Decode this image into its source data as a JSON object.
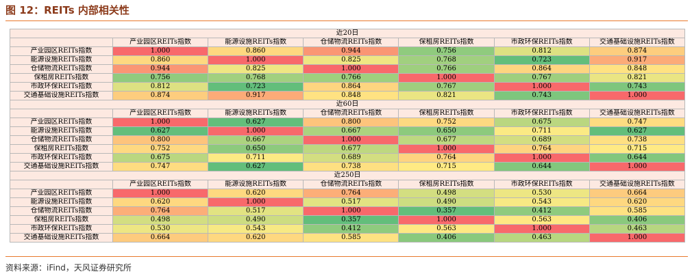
{
  "title": "图 12：REITs 内部相关性",
  "blocks": [
    {
      "period": "近20日",
      "columns": [
        "产业园区REITs指数",
        "能源设施REITs指数",
        "仓储物流REITs指数",
        "保租房REITs指数",
        "市政环保REITs指数",
        "交通基础设施REITs指数"
      ],
      "rows": [
        {
          "label": "产业园区REITs指数",
          "cells": [
            "1.000",
            "0.860",
            "0.944",
            "0.756",
            "0.812",
            "0.874"
          ]
        },
        {
          "label": "能源设施REITs指数",
          "cells": [
            "0.860",
            "1.000",
            "0.825",
            "0.768",
            "0.723",
            "0.917"
          ]
        },
        {
          "label": "仓储物流REITs指数",
          "cells": [
            "0.944",
            "0.825",
            "1.000",
            "0.766",
            "0.864",
            "0.848"
          ]
        },
        {
          "label": "保租房REITs指数",
          "cells": [
            "0.756",
            "0.768",
            "0.766",
            "1.000",
            "0.767",
            "0.821"
          ]
        },
        {
          "label": "市政环保REITs指数",
          "cells": [
            "0.812",
            "0.723",
            "0.864",
            "0.767",
            "1.000",
            "0.743"
          ]
        },
        {
          "label": "交通基础设施REITs指数",
          "cells": [
            "0.874",
            "0.917",
            "0.848",
            "0.821",
            "0.743",
            "1.000"
          ]
        }
      ]
    },
    {
      "period": "近60日",
      "columns": [
        "产业园区REITs指数",
        "能源设施REITs指数",
        "仓储物流REITs指数",
        "保租房REITs指数",
        "市政环保REITs指数",
        "交通基础设施REITs指数"
      ],
      "rows": [
        {
          "label": "产业园区REITs指数",
          "cells": [
            "1.000",
            "0.627",
            "0.800",
            "0.752",
            "0.675",
            "0.747"
          ]
        },
        {
          "label": "能源设施REITs指数",
          "cells": [
            "0.627",
            "1.000",
            "0.667",
            "0.650",
            "0.711",
            "0.627"
          ]
        },
        {
          "label": "仓储物流REITs指数",
          "cells": [
            "0.800",
            "0.667",
            "1.000",
            "0.677",
            "0.689",
            "0.738"
          ]
        },
        {
          "label": "保租房REITs指数",
          "cells": [
            "0.752",
            "0.650",
            "0.677",
            "1.000",
            "0.764",
            "0.715"
          ]
        },
        {
          "label": "市政环保REITs指数",
          "cells": [
            "0.675",
            "0.711",
            "0.689",
            "0.764",
            "1.000",
            "0.644"
          ]
        },
        {
          "label": "交通基础设施REITs指数",
          "cells": [
            "0.747",
            "0.627",
            "0.738",
            "0.715",
            "0.644",
            "1.000"
          ]
        }
      ]
    },
    {
      "period": "近250日",
      "columns": [
        "产业园区REITs指数",
        "能源设施REITs指数",
        "仓储物流REITs指数",
        "保租房REITs指数",
        "市政环保REITs指数",
        "交通基础设施REITs指数"
      ],
      "rows": [
        {
          "label": "产业园区REITs指数",
          "cells": [
            "1.000",
            "0.620",
            "0.764",
            "0.498",
            "0.530",
            "0.664"
          ]
        },
        {
          "label": "能源设施REITs指数",
          "cells": [
            "0.620",
            "1.000",
            "0.517",
            "0.490",
            "0.543",
            "0.620"
          ]
        },
        {
          "label": "仓储物流REITs指数",
          "cells": [
            "0.764",
            "0.517",
            "1.000",
            "0.357",
            "0.412",
            "0.585"
          ]
        },
        {
          "label": "保租房REITs指数",
          "cells": [
            "0.498",
            "0.490",
            "0.357",
            "1.000",
            "0.563",
            "0.406"
          ]
        },
        {
          "label": "市政环保REITs指数",
          "cells": [
            "0.530",
            "0.543",
            "0.412",
            "0.563",
            "1.000",
            "0.463"
          ]
        },
        {
          "label": "交通基础设施REITs指数",
          "cells": [
            "0.664",
            "0.620",
            "0.585",
            "0.406",
            "0.463",
            "1.000"
          ]
        }
      ]
    }
  ],
  "source": "资料来源：iFind，天风证券研究所"
}
